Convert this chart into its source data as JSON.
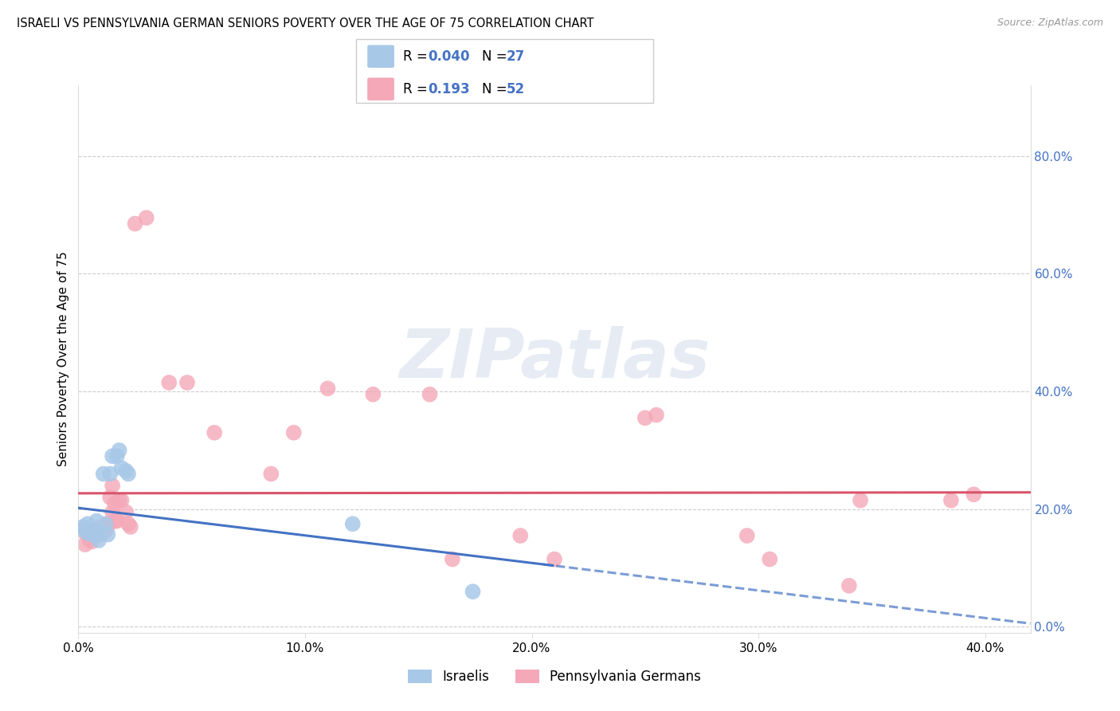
{
  "title": "ISRAELI VS PENNSYLVANIA GERMAN SENIORS POVERTY OVER THE AGE OF 75 CORRELATION CHART",
  "source": "Source: ZipAtlas.com",
  "ylabel": "Seniors Poverty Over the Age of 75",
  "xlim": [
    0.0,
    0.42
  ],
  "ylim": [
    -0.01,
    0.92
  ],
  "yticks": [
    0.0,
    0.2,
    0.4,
    0.6,
    0.8
  ],
  "xticks": [
    0.0,
    0.1,
    0.2,
    0.3,
    0.4
  ],
  "israeli_R": "0.040",
  "israeli_N": "27",
  "pg_R": "0.193",
  "pg_N": "52",
  "israelis_x": [
    0.002,
    0.003,
    0.003,
    0.004,
    0.004,
    0.005,
    0.005,
    0.006,
    0.006,
    0.007,
    0.007,
    0.008,
    0.008,
    0.009,
    0.01,
    0.011,
    0.012,
    0.013,
    0.014,
    0.015,
    0.017,
    0.018,
    0.019,
    0.021,
    0.022,
    0.121,
    0.174
  ],
  "israelis_y": [
    0.17,
    0.163,
    0.168,
    0.16,
    0.175,
    0.158,
    0.162,
    0.16,
    0.165,
    0.158,
    0.162,
    0.155,
    0.18,
    0.147,
    0.158,
    0.26,
    0.175,
    0.157,
    0.26,
    0.29,
    0.29,
    0.3,
    0.27,
    0.265,
    0.26,
    0.175,
    0.06
  ],
  "pg_x": [
    0.002,
    0.003,
    0.004,
    0.005,
    0.005,
    0.006,
    0.006,
    0.007,
    0.007,
    0.008,
    0.008,
    0.009,
    0.009,
    0.01,
    0.01,
    0.011,
    0.012,
    0.012,
    0.013,
    0.013,
    0.014,
    0.015,
    0.015,
    0.016,
    0.016,
    0.017,
    0.018,
    0.019,
    0.021,
    0.022,
    0.023,
    0.025,
    0.03,
    0.04,
    0.048,
    0.06,
    0.085,
    0.095,
    0.11,
    0.13,
    0.155,
    0.165,
    0.195,
    0.21,
    0.25,
    0.255,
    0.295,
    0.305,
    0.34,
    0.345,
    0.385,
    0.395
  ],
  "pg_y": [
    0.163,
    0.14,
    0.158,
    0.155,
    0.148,
    0.145,
    0.158,
    0.153,
    0.162,
    0.16,
    0.165,
    0.162,
    0.168,
    0.158,
    0.163,
    0.168,
    0.163,
    0.168,
    0.172,
    0.175,
    0.22,
    0.24,
    0.195,
    0.18,
    0.21,
    0.18,
    0.215,
    0.215,
    0.195,
    0.175,
    0.17,
    0.685,
    0.695,
    0.415,
    0.415,
    0.33,
    0.26,
    0.33,
    0.405,
    0.395,
    0.395,
    0.115,
    0.155,
    0.115,
    0.355,
    0.36,
    0.155,
    0.115,
    0.07,
    0.215,
    0.215,
    0.225
  ],
  "israeli_color": "#a8c8e8",
  "pg_color": "#f4a8b8",
  "israeli_line_color": "#4472c4",
  "pg_line_color": "#d9536a",
  "watermark_text": "ZIPatlas",
  "bg_color": "#ffffff"
}
